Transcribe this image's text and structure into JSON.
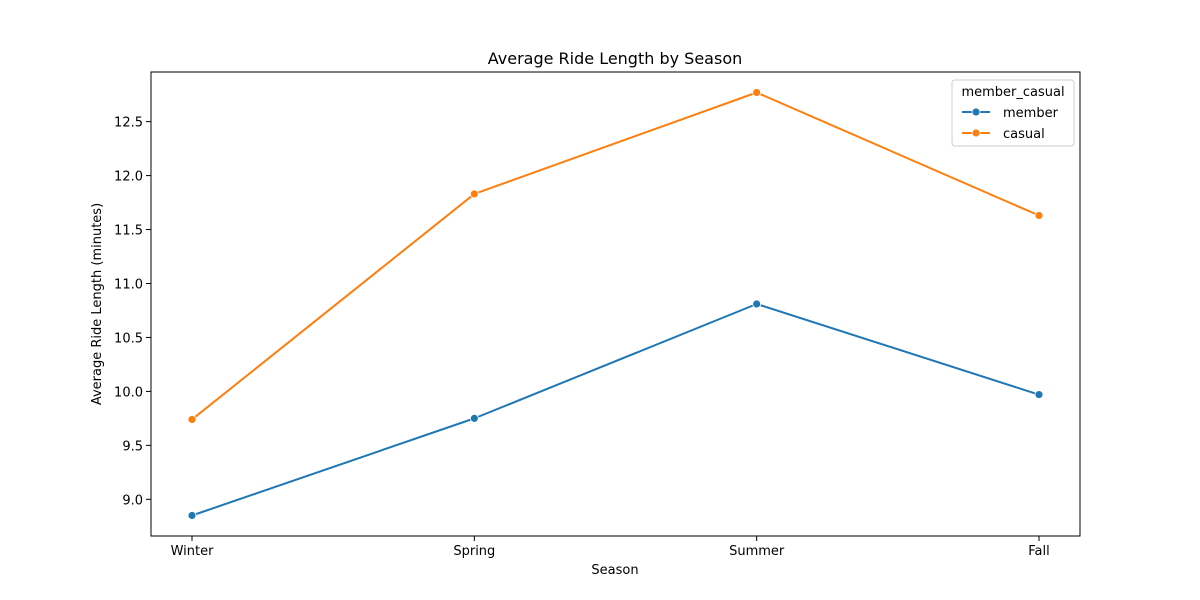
{
  "chart_data": {
    "type": "line",
    "title": "Average Ride Length by Season",
    "xlabel": "Season",
    "ylabel": "Average Ride Length (minutes)",
    "categories": [
      "Winter",
      "Spring",
      "Summer",
      "Fall"
    ],
    "ylim": [
      8.66,
      12.96
    ],
    "yticks": [
      9.0,
      9.5,
      10.0,
      10.5,
      11.0,
      11.5,
      12.0,
      12.5
    ],
    "ytick_labels": [
      "9.0",
      "9.5",
      "10.0",
      "10.5",
      "11.0",
      "11.5",
      "12.0",
      "12.5"
    ],
    "grid": false,
    "legend": {
      "title": "member_casual",
      "placement": "top-right"
    },
    "series": [
      {
        "name": "member",
        "color": "#1f77b4",
        "marker": "circle",
        "values": [
          8.85,
          9.75,
          10.81,
          9.97
        ]
      },
      {
        "name": "casual",
        "color": "#ff7f0e",
        "marker": "circle",
        "values": [
          9.74,
          11.83,
          12.77,
          11.63
        ]
      }
    ]
  }
}
